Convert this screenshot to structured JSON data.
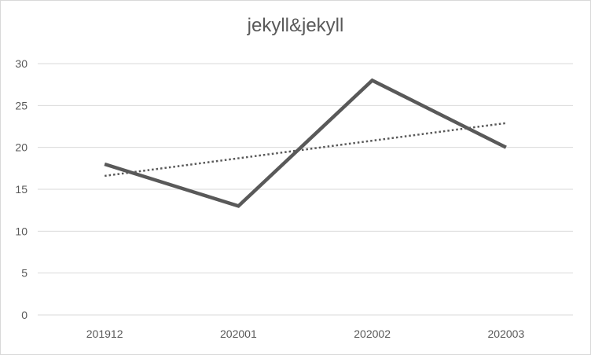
{
  "chart_data": {
    "type": "line",
    "title": "jekyll&jekyll",
    "xlabel": "",
    "ylabel": "",
    "categories": [
      "201912",
      "202001",
      "202002",
      "202003"
    ],
    "series": [
      {
        "values": [
          18,
          13,
          28,
          20
        ],
        "color": "#595959"
      }
    ],
    "trendline": {
      "kind": "linear",
      "style": "dotted",
      "color": "#595959"
    },
    "ylim": [
      0,
      30
    ],
    "yticks": [
      "0",
      "5",
      "10",
      "15",
      "20",
      "25",
      "30"
    ],
    "grid": "horizontal",
    "legend": "none"
  }
}
